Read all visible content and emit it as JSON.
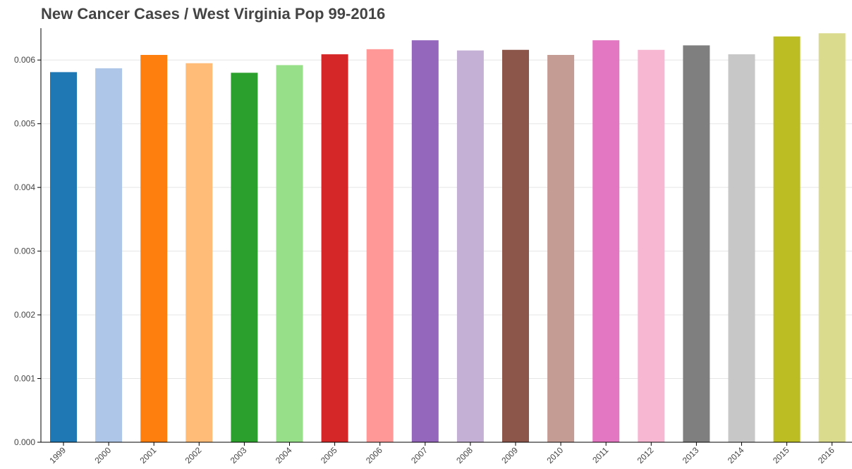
{
  "chart_data": {
    "type": "bar",
    "title": "New Cancer Cases / West Virginia Pop 99-2016",
    "xlabel": "",
    "ylabel": "",
    "ylim": [
      0,
      0.0065
    ],
    "yticks": [
      "0.000",
      "0.001",
      "0.002",
      "0.003",
      "0.004",
      "0.005",
      "0.006"
    ],
    "grid": true,
    "legend": "none",
    "categories": [
      "1999",
      "2000",
      "2001",
      "2002",
      "2003",
      "2004",
      "2005",
      "2006",
      "2007",
      "2008",
      "2009",
      "2010",
      "2011",
      "2012",
      "2013",
      "2014",
      "2015",
      "2016"
    ],
    "values": [
      0.00581,
      0.00587,
      0.00608,
      0.00595,
      0.0058,
      0.00592,
      0.00609,
      0.00617,
      0.00631,
      0.00615,
      0.00616,
      0.00608,
      0.00631,
      0.00616,
      0.00623,
      0.00609,
      0.00637,
      0.00642
    ],
    "colors": [
      "#1f77b4",
      "#aec7e8",
      "#ff7f0e",
      "#ffbb78",
      "#2ca02c",
      "#98df8a",
      "#d62728",
      "#ff9896",
      "#9467bd",
      "#c5b0d5",
      "#8c564b",
      "#c49c94",
      "#e377c2",
      "#f7b6d2",
      "#7f7f7f",
      "#c7c7c7",
      "#bcbd22",
      "#dbdb8d"
    ]
  }
}
